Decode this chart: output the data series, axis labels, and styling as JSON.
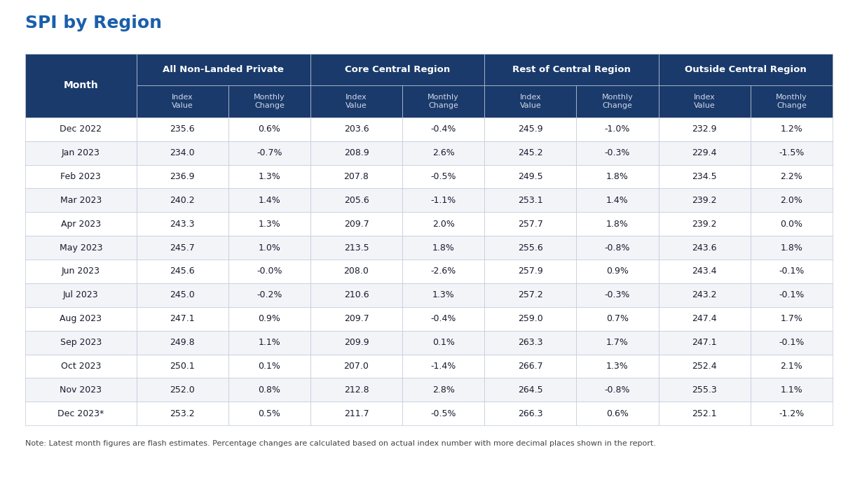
{
  "title": "SPI by Region",
  "note": "Note: Latest month figures are flash estimates. Percentage changes are calculated based on actual index number with more decimal places shown in the report.",
  "col_groups": [
    {
      "label": "All Non-Landed Private",
      "cols": [
        "Index\nValue",
        "Monthly\nChange"
      ]
    },
    {
      "label": "Core Central Region",
      "cols": [
        "Index\nValue",
        "Monthly\nChange"
      ]
    },
    {
      "label": "Rest of Central Region",
      "cols": [
        "Index\nValue",
        "Monthly\nChange"
      ]
    },
    {
      "label": "Outside Central Region",
      "cols": [
        "Index\nValue",
        "Monthly\nChange"
      ]
    }
  ],
  "rows": [
    [
      "Dec 2022",
      "235.6",
      "0.6%",
      "203.6",
      "-0.4%",
      "245.9",
      "-1.0%",
      "232.9",
      "1.2%"
    ],
    [
      "Jan 2023",
      "234.0",
      "-0.7%",
      "208.9",
      "2.6%",
      "245.2",
      "-0.3%",
      "229.4",
      "-1.5%"
    ],
    [
      "Feb 2023",
      "236.9",
      "1.3%",
      "207.8",
      "-0.5%",
      "249.5",
      "1.8%",
      "234.5",
      "2.2%"
    ],
    [
      "Mar 2023",
      "240.2",
      "1.4%",
      "205.6",
      "-1.1%",
      "253.1",
      "1.4%",
      "239.2",
      "2.0%"
    ],
    [
      "Apr 2023",
      "243.3",
      "1.3%",
      "209.7",
      "2.0%",
      "257.7",
      "1.8%",
      "239.2",
      "0.0%"
    ],
    [
      "May 2023",
      "245.7",
      "1.0%",
      "213.5",
      "1.8%",
      "255.6",
      "-0.8%",
      "243.6",
      "1.8%"
    ],
    [
      "Jun 2023",
      "245.6",
      "-0.0%",
      "208.0",
      "-2.6%",
      "257.9",
      "0.9%",
      "243.4",
      "-0.1%"
    ],
    [
      "Jul 2023",
      "245.0",
      "-0.2%",
      "210.6",
      "1.3%",
      "257.2",
      "-0.3%",
      "243.2",
      "-0.1%"
    ],
    [
      "Aug 2023",
      "247.1",
      "0.9%",
      "209.7",
      "-0.4%",
      "259.0",
      "0.7%",
      "247.4",
      "1.7%"
    ],
    [
      "Sep 2023",
      "249.8",
      "1.1%",
      "209.9",
      "0.1%",
      "263.3",
      "1.7%",
      "247.1",
      "-0.1%"
    ],
    [
      "Oct 2023",
      "250.1",
      "0.1%",
      "207.0",
      "-1.4%",
      "266.7",
      "1.3%",
      "252.4",
      "2.1%"
    ],
    [
      "Nov 2023",
      "252.0",
      "0.8%",
      "212.8",
      "2.8%",
      "264.5",
      "-0.8%",
      "255.3",
      "1.1%"
    ],
    [
      "Dec 2023*",
      "253.2",
      "0.5%",
      "211.7",
      "-0.5%",
      "266.3",
      "0.6%",
      "252.1",
      "-1.2%"
    ]
  ],
  "header_bg": "#1a3a6b",
  "header_text": "#ffffff",
  "subheader_bg": "#1a3a6b",
  "subheader_text": "#d0d8e8",
  "row_bg_even": "#ffffff",
  "row_bg_odd": "#f2f4f8",
  "row_text": "#1a1a2e",
  "border_color": "#c0c8d8",
  "title_color": "#1a5faa",
  "note_color": "#444444",
  "background": "#ffffff"
}
